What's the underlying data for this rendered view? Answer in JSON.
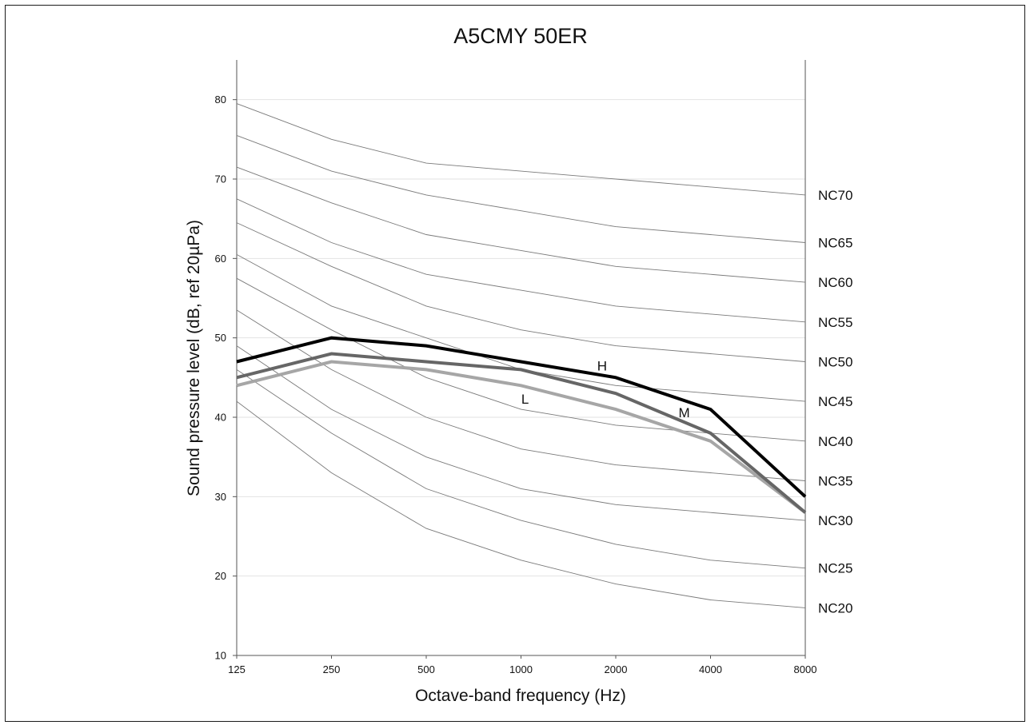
{
  "chart_data": {
    "type": "line",
    "title": "A5CMY 50ER",
    "xlabel": "Octave-band frequency (Hz)",
    "ylabel": "Sound pressure level (dB, ref 20µPa)",
    "categories": [
      "125",
      "250",
      "500",
      "1000",
      "2000",
      "4000",
      "8000"
    ],
    "ylim": [
      10,
      85
    ],
    "yticks": [
      10,
      20,
      30,
      40,
      50,
      60,
      70,
      80
    ],
    "grid": true,
    "reference_curves": [
      {
        "name": "NC70",
        "values": [
          79.5,
          75,
          72,
          71,
          70,
          69,
          68
        ]
      },
      {
        "name": "NC65",
        "values": [
          75.5,
          71,
          68,
          66,
          64,
          63,
          62
        ]
      },
      {
        "name": "NC60",
        "values": [
          71.5,
          67,
          63,
          61,
          59,
          58,
          57
        ]
      },
      {
        "name": "NC55",
        "values": [
          67.5,
          62,
          58,
          56,
          54,
          53,
          52
        ]
      },
      {
        "name": "NC50",
        "values": [
          64.5,
          59,
          54,
          51,
          49,
          48,
          47
        ]
      },
      {
        "name": "NC45",
        "values": [
          60.5,
          54,
          50,
          46,
          44,
          43,
          42
        ]
      },
      {
        "name": "NC40",
        "values": [
          57.5,
          51,
          45,
          41,
          39,
          38,
          37
        ]
      },
      {
        "name": "NC35",
        "values": [
          53.5,
          46,
          40,
          36,
          34,
          33,
          32
        ]
      },
      {
        "name": "NC30",
        "values": [
          49,
          41,
          35,
          31,
          29,
          28,
          27
        ]
      },
      {
        "name": "NC25",
        "values": [
          46,
          38,
          31,
          27,
          24,
          22,
          21
        ]
      },
      {
        "name": "NC20",
        "values": [
          42,
          33,
          26,
          22,
          19,
          17,
          16
        ]
      }
    ],
    "series": [
      {
        "name": "H",
        "color": "#000000",
        "values": [
          47,
          50,
          49,
          47,
          45,
          41,
          30
        ],
        "label_at": [
          1810,
          45.9
        ]
      },
      {
        "name": "M",
        "color": "#666666",
        "values": [
          45,
          48,
          47,
          46,
          43,
          38,
          28
        ],
        "label_at": [
          3300,
          40.0
        ]
      },
      {
        "name": "L",
        "color": "#a6a6a6",
        "values": [
          44,
          47,
          46,
          44,
          41,
          37,
          28
        ],
        "label_at": [
          1030,
          41.7
        ]
      }
    ]
  }
}
